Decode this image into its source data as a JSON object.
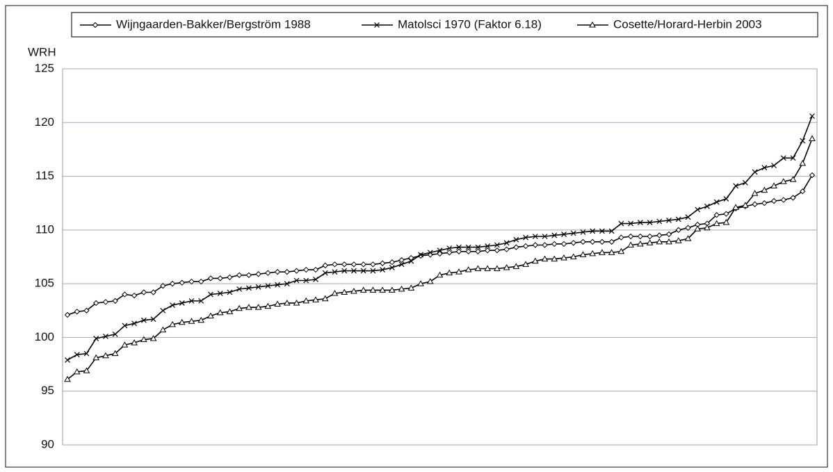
{
  "chart_data": {
    "type": "line",
    "y_label": "WRH",
    "categories": [
      null,
      null,
      null,
      null,
      null,
      null,
      null,
      null,
      null,
      null,
      null,
      null,
      null,
      null,
      null,
      null,
      null,
      null,
      null,
      null,
      null,
      null,
      null,
      null,
      null,
      null,
      null,
      null,
      null,
      null,
      null,
      null,
      null,
      null,
      null,
      null,
      null,
      null,
      null,
      null,
      null,
      null,
      null,
      null,
      null,
      null,
      null,
      null,
      null,
      null,
      null,
      null,
      null,
      null,
      null,
      null,
      null,
      null,
      null,
      null,
      null,
      null,
      null,
      null,
      null,
      null,
      null,
      null,
      null,
      null,
      null,
      null,
      null,
      null,
      null,
      null,
      null,
      null,
      null
    ],
    "series": [
      {
        "name": "Wijngaarden-Bakker/Bergström 1988",
        "color": "#000000",
        "marker": "diamond",
        "values": [
          102.1,
          102.4,
          102.5,
          103.2,
          103.3,
          103.4,
          104.0,
          103.9,
          104.2,
          104.2,
          104.8,
          105.0,
          105.1,
          105.2,
          105.2,
          105.5,
          105.5,
          105.6,
          105.8,
          105.8,
          105.9,
          106.0,
          106.1,
          106.1,
          106.2,
          106.3,
          106.3,
          106.7,
          106.8,
          106.8,
          106.8,
          106.8,
          106.8,
          106.9,
          107.0,
          107.2,
          107.4,
          107.6,
          107.7,
          107.8,
          107.9,
          108.0,
          108.0,
          108.0,
          108.1,
          108.1,
          108.2,
          108.4,
          108.5,
          108.6,
          108.6,
          108.7,
          108.7,
          108.8,
          108.9,
          108.9,
          108.9,
          108.9,
          109.3,
          109.4,
          109.4,
          109.4,
          109.5,
          109.6,
          110.0,
          110.2,
          110.5,
          110.6,
          111.4,
          111.5,
          112.0,
          112.2,
          112.4,
          112.5,
          112.7,
          112.8,
          113.0,
          113.6,
          115.1
        ]
      },
      {
        "name": "Matolsci 1970 (Faktor 6.18)",
        "color": "#000000",
        "marker": "x",
        "values": [
          97.9,
          98.4,
          98.5,
          99.9,
          100.1,
          100.3,
          101.1,
          101.3,
          101.6,
          101.7,
          102.5,
          103.0,
          103.2,
          103.4,
          103.4,
          104.0,
          104.1,
          104.2,
          104.5,
          104.6,
          104.7,
          104.8,
          104.9,
          105.0,
          105.3,
          105.3,
          105.4,
          106.0,
          106.1,
          106.2,
          106.2,
          106.2,
          106.2,
          106.3,
          106.5,
          106.8,
          107.1,
          107.7,
          107.9,
          108.1,
          108.3,
          108.4,
          108.4,
          108.4,
          108.5,
          108.6,
          108.8,
          109.1,
          109.3,
          109.4,
          109.4,
          109.5,
          109.6,
          109.7,
          109.8,
          109.9,
          109.9,
          109.9,
          110.6,
          110.6,
          110.7,
          110.7,
          110.8,
          110.9,
          111.0,
          111.2,
          111.9,
          112.2,
          112.6,
          112.9,
          114.1,
          114.4,
          115.4,
          115.8,
          116.0,
          116.7,
          116.7,
          118.3,
          120.6
        ]
      },
      {
        "name": "Cosette/Horard-Herbin 2003",
        "color": "#000000",
        "marker": "triangle",
        "values": [
          96.1,
          96.8,
          96.9,
          98.1,
          98.3,
          98.5,
          99.3,
          99.5,
          99.8,
          99.9,
          100.7,
          101.2,
          101.4,
          101.5,
          101.6,
          102.0,
          102.3,
          102.4,
          102.7,
          102.8,
          102.8,
          102.9,
          103.1,
          103.2,
          103.2,
          103.4,
          103.5,
          103.6,
          104.1,
          104.2,
          104.3,
          104.4,
          104.4,
          104.4,
          104.4,
          104.5,
          104.6,
          105.0,
          105.2,
          105.8,
          106.0,
          106.1,
          106.3,
          106.4,
          106.4,
          106.4,
          106.5,
          106.6,
          106.8,
          107.1,
          107.3,
          107.3,
          107.4,
          107.5,
          107.7,
          107.8,
          107.9,
          107.9,
          108.0,
          108.6,
          108.7,
          108.8,
          108.9,
          108.9,
          109.0,
          109.2,
          110.1,
          110.2,
          110.6,
          110.7,
          112.1,
          112.3,
          113.4,
          113.7,
          114.1,
          114.5,
          114.7,
          116.2,
          118.5
        ]
      }
    ],
    "ylim": [
      90,
      125
    ],
    "yticks": [
      90,
      95,
      100,
      105,
      110,
      115,
      120,
      125
    ],
    "grid": true,
    "legend": "top"
  }
}
